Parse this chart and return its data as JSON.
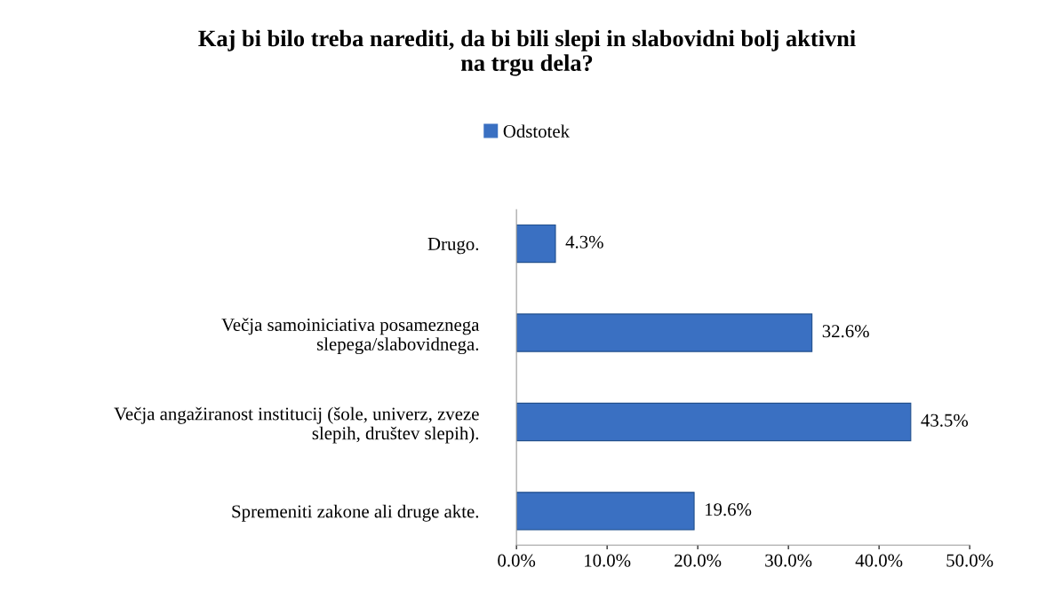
{
  "chart_data": {
    "type": "bar",
    "orientation": "horizontal",
    "title": "Kaj bi bilo treba narediti, da bi bili slepi in slabovidni bolj aktivni\nna trgu dela?",
    "categories": [
      "Drugo.",
      "Večja samoiniciativa posameznega\nslepega/slabovidnega.",
      "Večja angažiranost institucij (šole, univerz, zveze\nslepih, društev slepih).",
      "Spremeniti zakone ali druge akte."
    ],
    "series": [
      {
        "name": "Odstotek",
        "color": "#3a70c2",
        "values": [
          4.3,
          32.6,
          43.5,
          19.6
        ],
        "value_labels": [
          "4.3%",
          "32.6%",
          "43.5%",
          "19.6%"
        ]
      }
    ],
    "xlim": [
      0,
      50
    ],
    "xticks": [
      {
        "value": 0,
        "label": "0.0%"
      },
      {
        "value": 10,
        "label": "10.0%"
      },
      {
        "value": 20,
        "label": "20.0%"
      },
      {
        "value": 30,
        "label": "30.0%"
      },
      {
        "value": 40,
        "label": "40.0%"
      },
      {
        "value": 50,
        "label": "50.0%"
      }
    ],
    "grid": false,
    "legend": "top"
  }
}
